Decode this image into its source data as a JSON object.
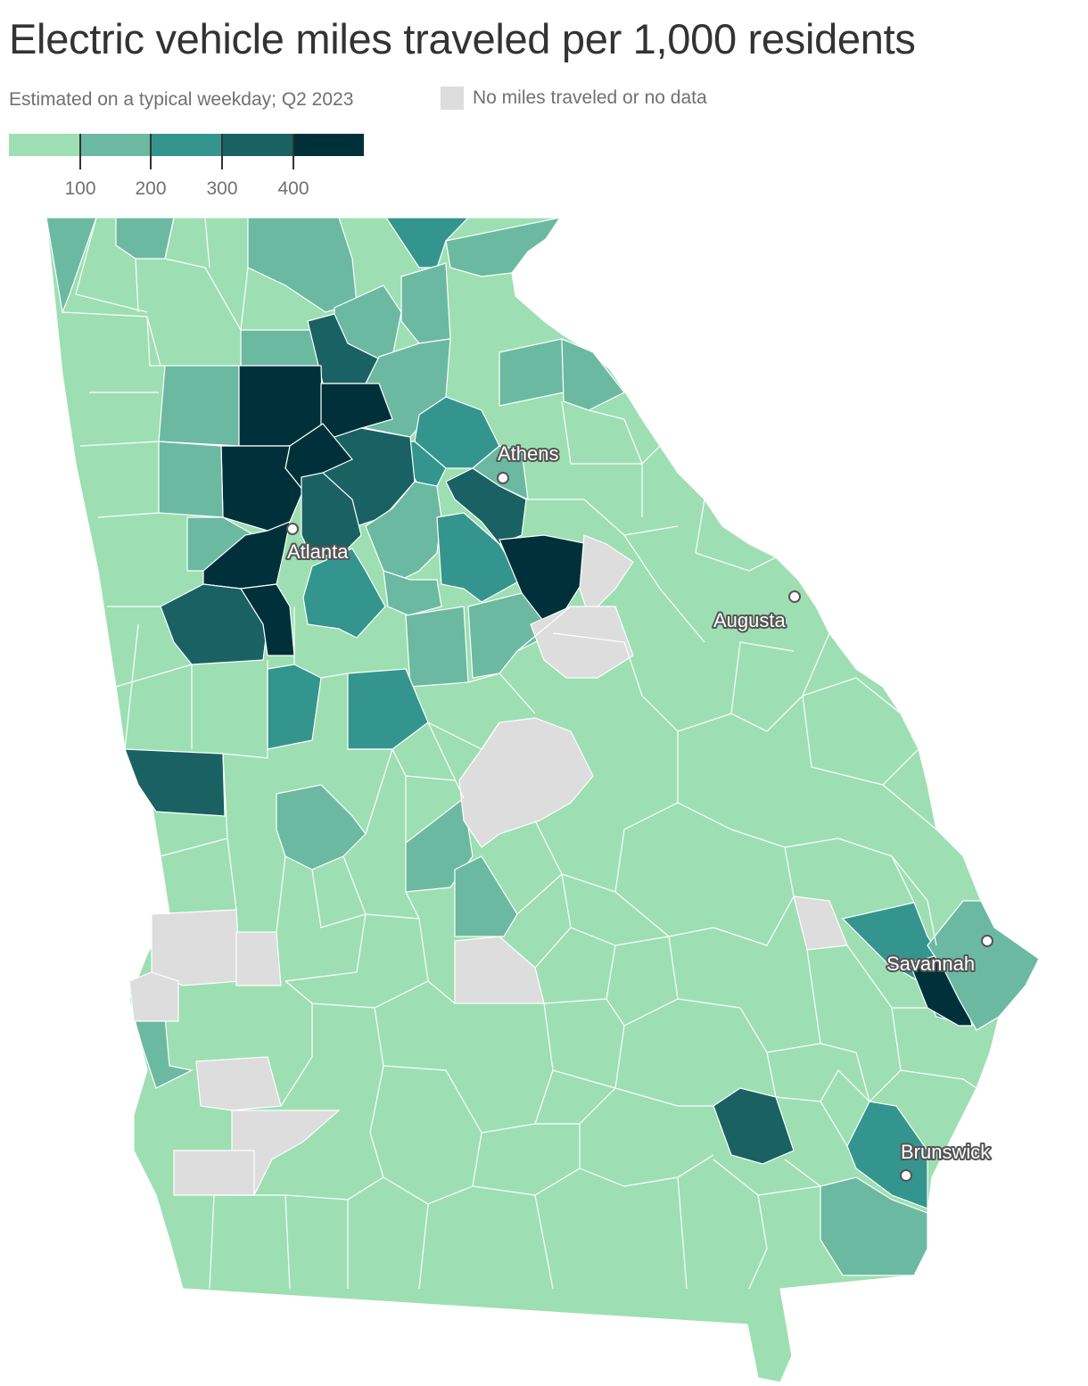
{
  "title": "Electric vehicle miles traveled per 1,000 residents",
  "subtitle": "Estimated on a typical weekday; Q2 2023",
  "legend": {
    "nodata_label": "No miles traveled or no data",
    "nodata_color": "#dddddd",
    "bins": [
      {
        "max": 100,
        "color": "#9ddfb2"
      },
      {
        "max": 200,
        "color": "#6cb9a2"
      },
      {
        "max": 300,
        "color": "#34958f"
      },
      {
        "max": 400,
        "color": "#1a6164"
      },
      {
        "max": null,
        "color": "#00313a"
      }
    ],
    "ticks": [
      "100",
      "200",
      "300",
      "400"
    ]
  },
  "cities": [
    {
      "name": "Athens"
    },
    {
      "name": "Atlanta"
    },
    {
      "name": "Augusta"
    },
    {
      "name": "Savannah"
    },
    {
      "name": "Brunswick"
    }
  ]
}
